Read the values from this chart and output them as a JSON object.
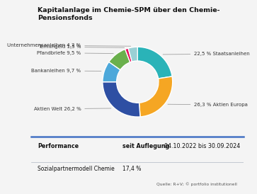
{
  "title_line1": "Kapitalanlage im Chemie-SPM über den Chemie-",
  "title_line2": "Pensionsfonds",
  "slices": [
    {
      "label": "Staatsanleihen",
      "pct": 22.5,
      "color": "#2ab3b8",
      "pct_label": "22,5 % Staatsanleihen",
      "side": "right"
    },
    {
      "label": "Aktien Europa",
      "pct": 26.3,
      "color": "#f5a623",
      "pct_label": "26,3 % Aktien Europa",
      "side": "right"
    },
    {
      "label": "Aktien Welt",
      "pct": 26.2,
      "color": "#2e4fa3",
      "pct_label": "Aktien Welt 26,2 %",
      "side": "left"
    },
    {
      "label": "Bankanleihen",
      "pct": 9.7,
      "color": "#4da8da",
      "pct_label": "Bankanleihen 9,7 %",
      "side": "left"
    },
    {
      "label": "Pfandbriefe",
      "pct": 9.5,
      "color": "#6ab04c",
      "pct_label": "Pfandbriefe 9,5 %",
      "side": "left"
    },
    {
      "label": "Termingeld",
      "pct": 1.5,
      "color": "#e8125c",
      "pct_label": "Termingeld 1,5 %",
      "side": "left"
    },
    {
      "label": "Unternehmensanleihen",
      "pct": 4.3,
      "color": "#9ad0d5",
      "pct_label": "Unternehmensanleihen 4,3 %",
      "side": "left"
    }
  ],
  "table_header_col1": "Performance",
  "table_header_col2_bold": "seit Auflegung ",
  "table_header_col2_normal": "04.10.2022 bis 30.09.2024",
  "table_row_col1": "Sozialpartnermodell Chemie",
  "table_row_col2": "17,4 %",
  "source": "Quelle: R+V; © portfolio institutionell",
  "bg_color": "#f4f4f4",
  "table_bg": "#d8dfe8",
  "divider_color": "#4472c4"
}
